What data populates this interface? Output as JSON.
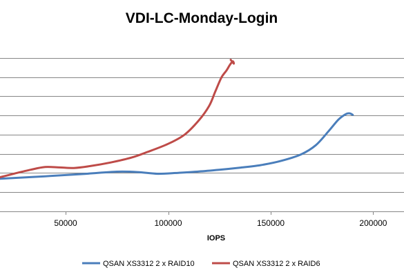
{
  "chart_data": {
    "type": "line",
    "title": "VDI-LC-Monday-Login",
    "xlabel": "IOPS",
    "ylabel": "",
    "xlim": [
      18000,
      215000
    ],
    "ylim": [
      0,
      9
    ],
    "x_ticks": [
      "50000",
      "100000",
      "150000",
      "200000"
    ],
    "x_tick_values": [
      50000,
      100000,
      150000,
      200000
    ],
    "y_gridlines": [
      1,
      2,
      3,
      4,
      5,
      6,
      7,
      8
    ],
    "y_tick_labels_visible": false,
    "grid": true,
    "legend_position": "bottom",
    "series": [
      {
        "name": "QSAN XS3312 2 x RAID10",
        "color": "#4A7EBB",
        "points": [
          [
            18000,
            1.7
          ],
          [
            40000,
            1.83
          ],
          [
            60000,
            1.96
          ],
          [
            75000,
            2.07
          ],
          [
            85000,
            2.05
          ],
          [
            95000,
            1.96
          ],
          [
            105000,
            2.01
          ],
          [
            115000,
            2.08
          ],
          [
            125000,
            2.17
          ],
          [
            135000,
            2.28
          ],
          [
            145000,
            2.41
          ],
          [
            155000,
            2.63
          ],
          [
            165000,
            2.98
          ],
          [
            172000,
            3.45
          ],
          [
            178000,
            4.15
          ],
          [
            183000,
            4.78
          ],
          [
            186500,
            5.06
          ],
          [
            188500,
            5.11
          ],
          [
            190000,
            5.03
          ]
        ]
      },
      {
        "name": "QSAN XS3312 2 x RAID6",
        "color": "#BE4B48",
        "points": [
          [
            18000,
            1.78
          ],
          [
            25000,
            1.97
          ],
          [
            33000,
            2.17
          ],
          [
            40000,
            2.31
          ],
          [
            47000,
            2.29
          ],
          [
            54000,
            2.26
          ],
          [
            62000,
            2.36
          ],
          [
            72000,
            2.55
          ],
          [
            82000,
            2.8
          ],
          [
            90000,
            3.1
          ],
          [
            100000,
            3.52
          ],
          [
            108000,
            4.0
          ],
          [
            115000,
            4.75
          ],
          [
            120000,
            5.5
          ],
          [
            123000,
            6.25
          ],
          [
            126000,
            6.98
          ],
          [
            128500,
            7.35
          ],
          [
            130000,
            7.62
          ],
          [
            131500,
            7.82
          ],
          [
            132000,
            7.7
          ],
          [
            130500,
            7.9
          ]
        ]
      }
    ]
  }
}
